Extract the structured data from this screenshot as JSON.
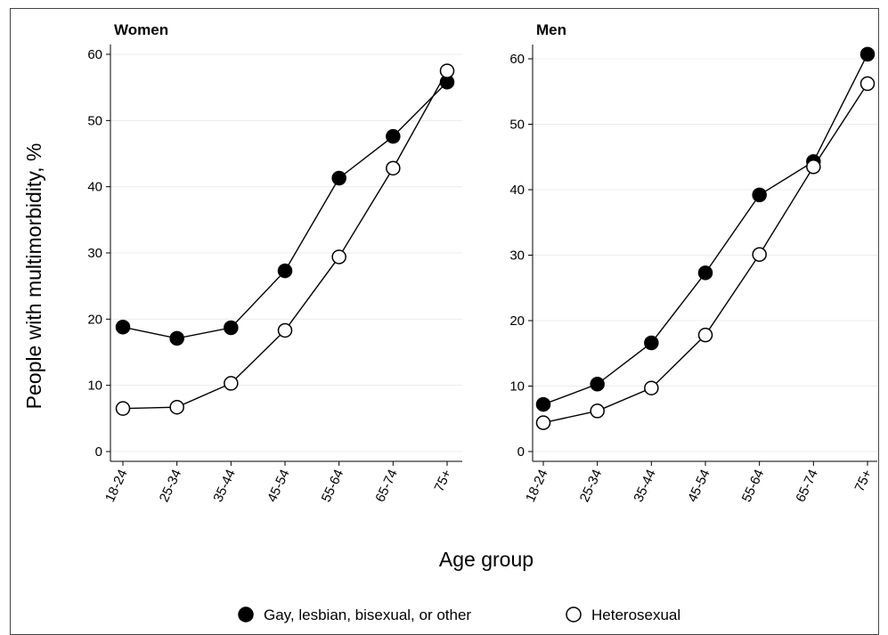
{
  "figure": {
    "ylabel": "People with multimorbidity, %",
    "xlabel": "Age group"
  },
  "legend": {
    "placement": "bottom-center",
    "items": [
      {
        "label": "Gay, lesbian, bisexual, or other",
        "marker": "filled-circle",
        "color": "#000000"
      },
      {
        "label": "Heterosexual",
        "marker": "open-circle",
        "color": "#000000"
      }
    ]
  },
  "chart_data": [
    {
      "type": "line",
      "title": "Women",
      "categories": [
        "18-24",
        "25-34",
        "35-44",
        "45-54",
        "55-64",
        "65-74",
        "75+"
      ],
      "series": [
        {
          "name": "Gay, lesbian, bisexual, or other",
          "values": [
            18.8,
            17.1,
            18.7,
            27.3,
            41.3,
            47.6,
            55.8
          ]
        },
        {
          "name": "Heterosexual",
          "values": [
            6.5,
            6.7,
            10.3,
            18.3,
            29.4,
            42.8,
            57.5
          ]
        }
      ],
      "ylim": [
        0,
        60
      ],
      "yticks": [
        0,
        10,
        20,
        30,
        40,
        50,
        60
      ],
      "grid": true
    },
    {
      "type": "line",
      "title": "Men",
      "categories": [
        "18-24",
        "25-34",
        "35-44",
        "45-54",
        "55-64",
        "65-74",
        "75+"
      ],
      "series": [
        {
          "name": "Gay, lesbian, bisexual, or other",
          "values": [
            7.2,
            10.3,
            16.6,
            27.3,
            39.2,
            44.3,
            60.7
          ]
        },
        {
          "name": "Heterosexual",
          "values": [
            4.4,
            6.2,
            9.7,
            17.8,
            30.1,
            43.5,
            56.2
          ]
        }
      ],
      "ylim": [
        0,
        60
      ],
      "yticks": [
        0,
        10,
        20,
        30,
        40,
        50,
        60
      ],
      "grid": true
    }
  ]
}
